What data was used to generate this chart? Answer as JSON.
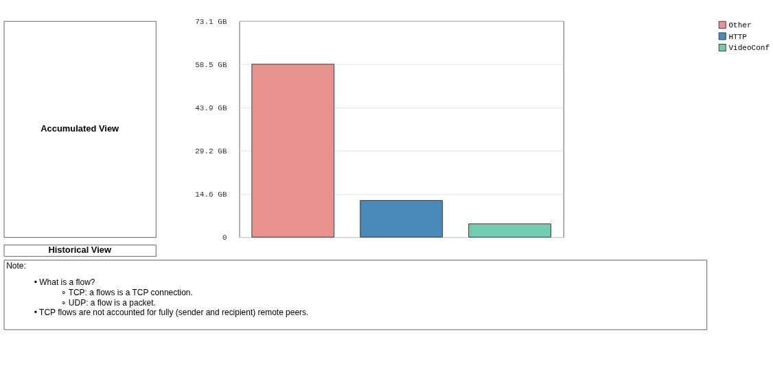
{
  "chart_data": {
    "type": "bar",
    "categories": [
      null,
      null,
      null
    ],
    "series": [
      {
        "name": "Other",
        "color": "#e6928f",
        "values": [
          58.5,
          null,
          null
        ]
      },
      {
        "name": "HTTP",
        "color": "#4b8bba",
        "values": [
          null,
          12.4,
          null
        ]
      },
      {
        "name": "VideoConf",
        "color": "#72cbb0",
        "values": [
          null,
          null,
          4.5
        ]
      }
    ],
    "ylim": [
      0,
      73.1
    ],
    "yticks": [
      {
        "value": 0,
        "label": "0"
      },
      {
        "value": 14.6,
        "label": "14.6 GB"
      },
      {
        "value": 29.2,
        "label": "29.2 GB"
      },
      {
        "value": 43.9,
        "label": "43.9 GB"
      },
      {
        "value": 58.5,
        "label": "58.5 GB"
      },
      {
        "value": 73.1,
        "label": "73.1 GB"
      }
    ],
    "grid": "y",
    "legend": "top right",
    "annotations": [
      "Accumulated View",
      "Historical View",
      "Note:",
      "• What is a flow?",
      "∘ TCP: a flows is a TCP connection.",
      "∘ UDP: a flow is a packet.",
      "• TCP flows are not accounted for fully (sender and recipient) remote peers."
    ]
  }
}
